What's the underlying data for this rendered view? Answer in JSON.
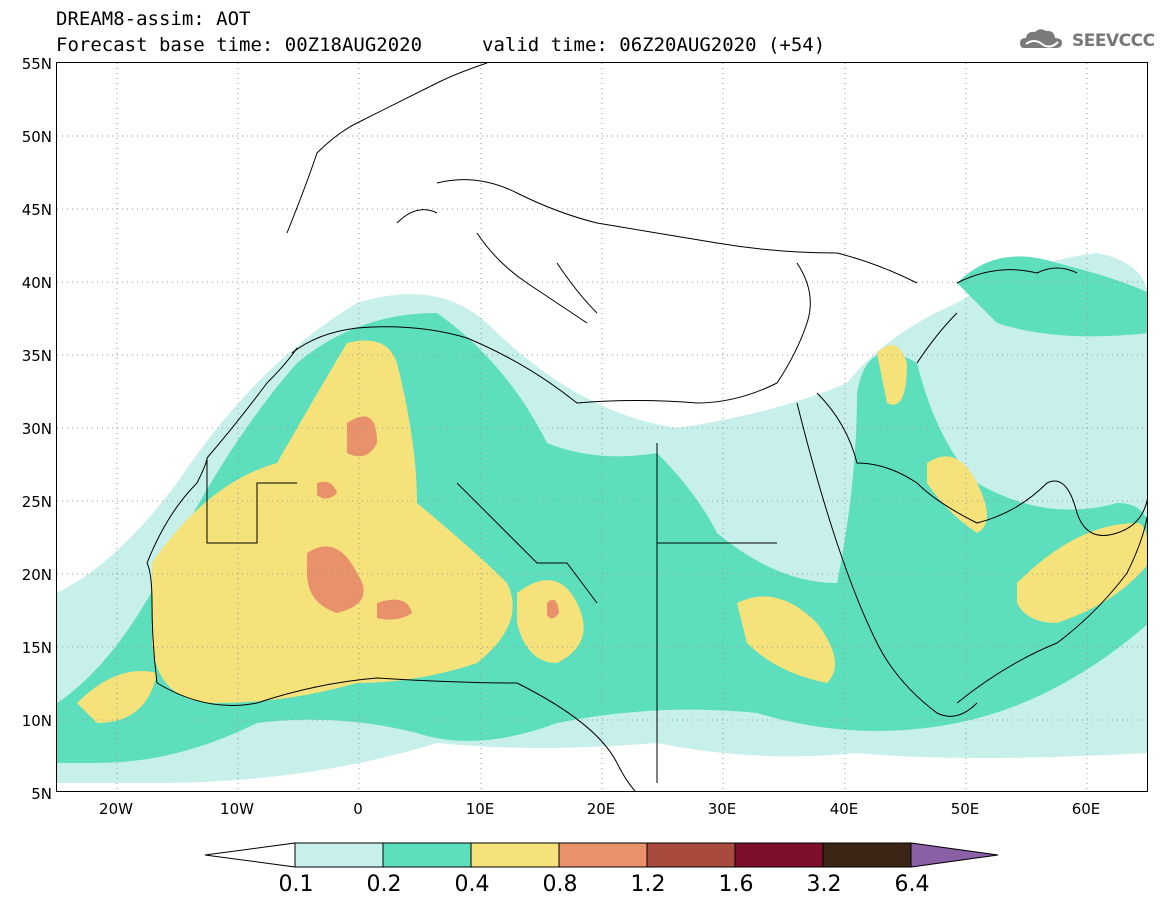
{
  "header": {
    "line1": "DREAM8-assim: AOT",
    "line2": "Forecast base time: 00Z18AUG2020",
    "valid": "valid time: 06Z20AUG2020 (+54)",
    "logo_text": "SEEVCCC"
  },
  "axes": {
    "lat_labels": [
      "55N",
      "50N",
      "45N",
      "40N",
      "35N",
      "30N",
      "25N",
      "20N",
      "15N",
      "10N",
      "5N"
    ],
    "lon_labels": [
      "20W",
      "10W",
      "0",
      "10E",
      "20E",
      "30E",
      "40E",
      "50E",
      "60E"
    ]
  },
  "colorbar": {
    "labels": [
      "0.1",
      "0.2",
      "0.4",
      "0.8",
      "1.2",
      "1.6",
      "3.2",
      "6.4"
    ],
    "colors": [
      "#ffffff",
      "#c8f0ea",
      "#5ddfbd",
      "#f5e27a",
      "#e8916a",
      "#a84a3c",
      "#7d0f2c",
      "#3b2514",
      "#8a60a6"
    ]
  }
}
